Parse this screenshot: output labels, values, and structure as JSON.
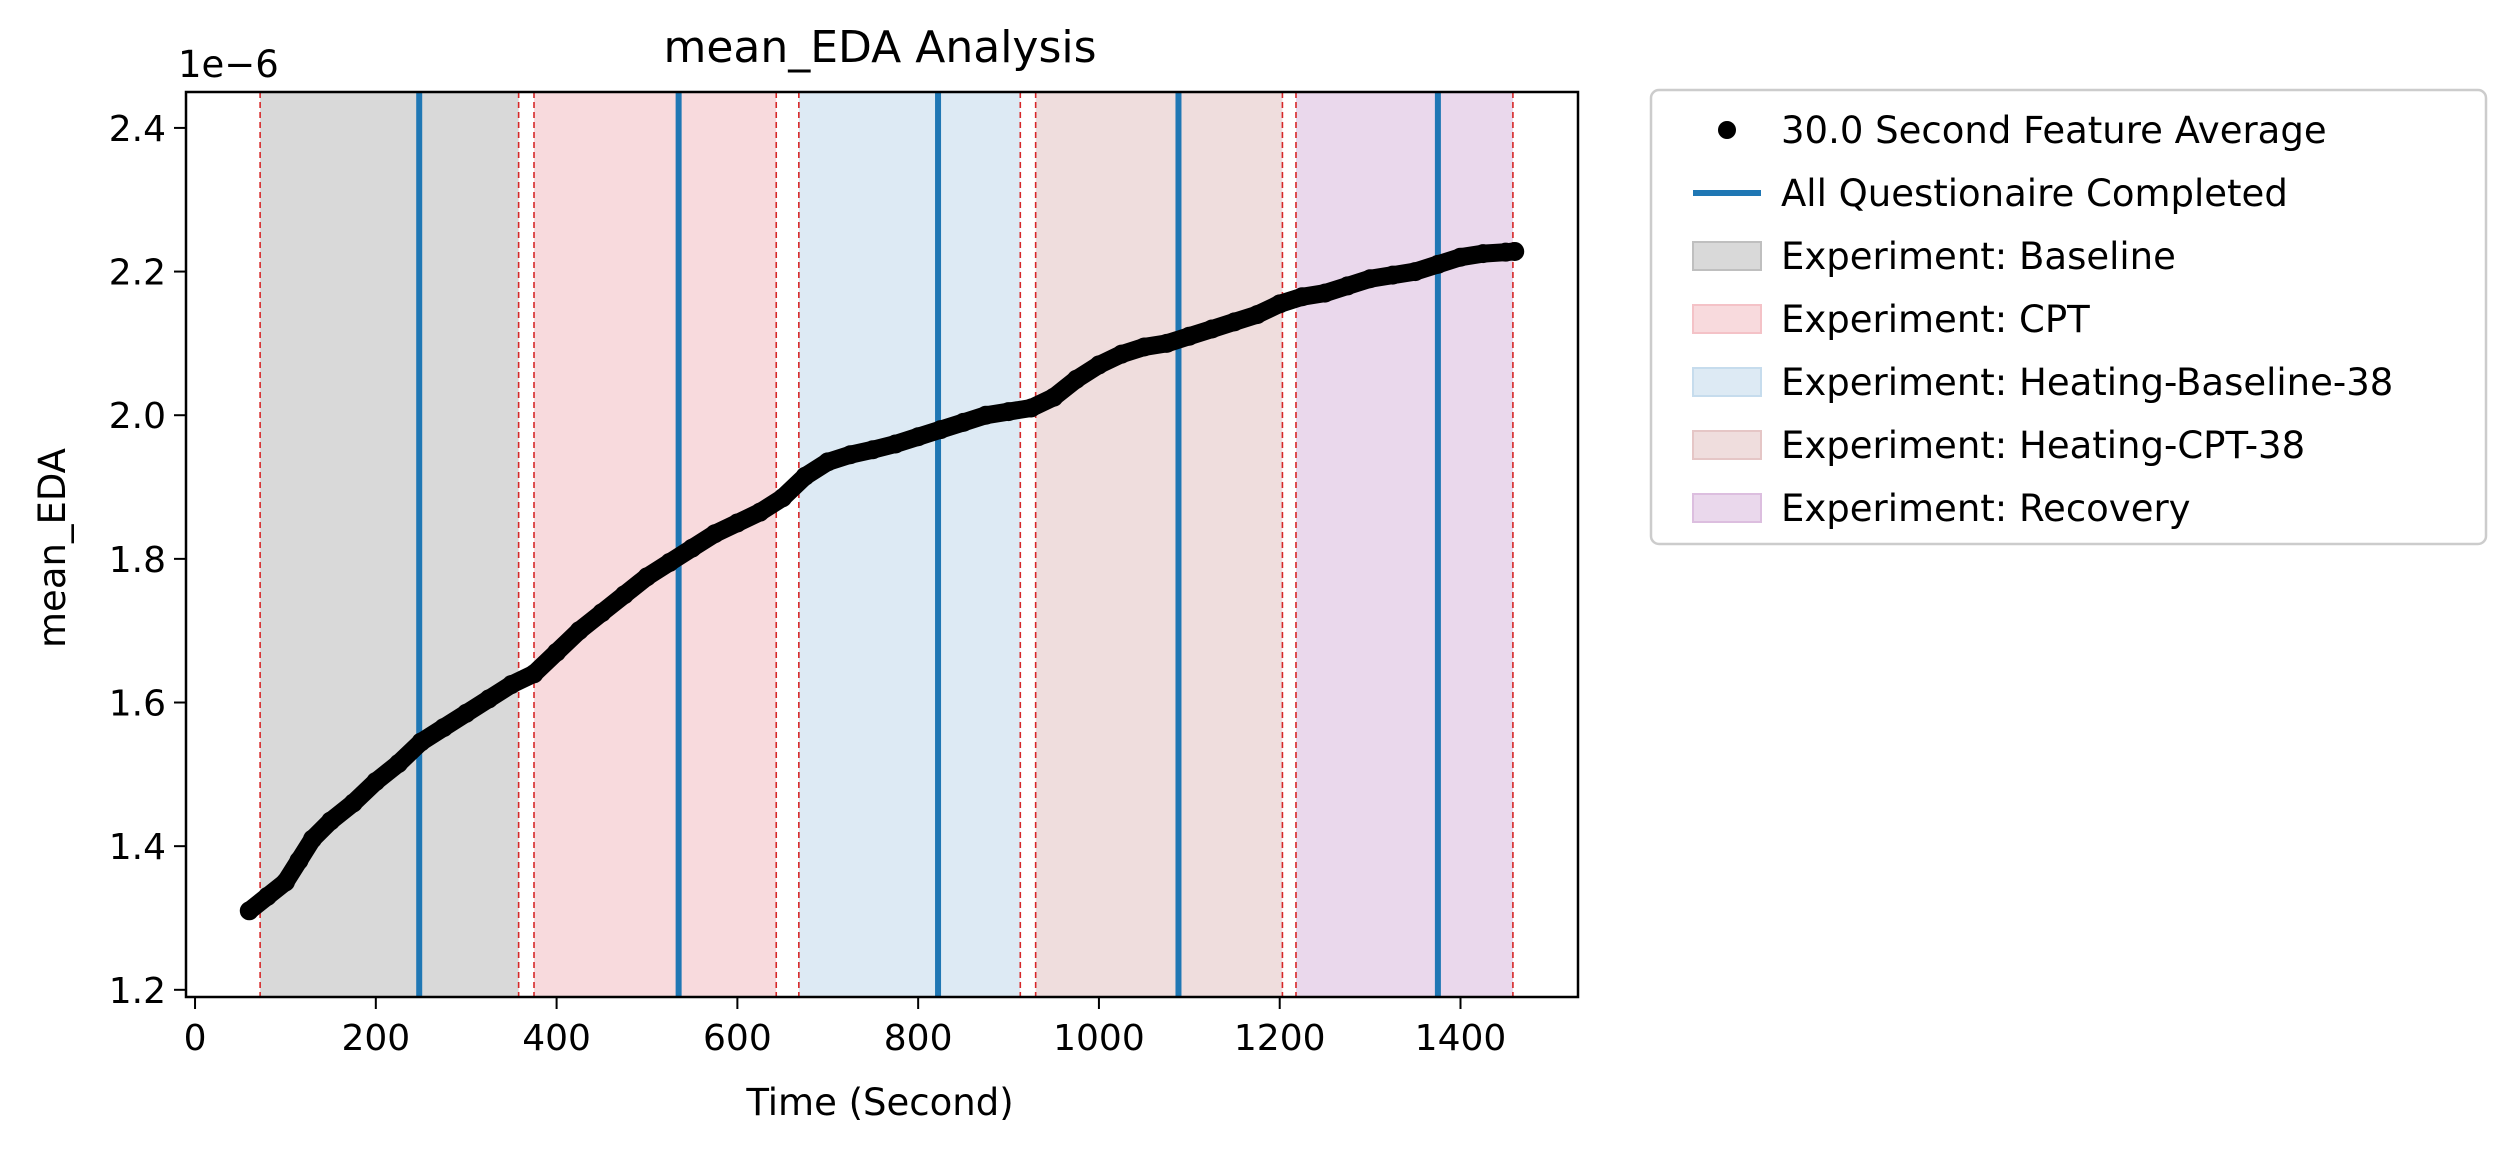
{
  "chart_data": {
    "type": "scatter",
    "title": "mean_EDA Analysis",
    "xlabel": "Time (Second)",
    "ylabel": "mean_EDA",
    "y_offset_label": "1e−6",
    "xlim": [
      -10,
      1530
    ],
    "ylim": [
      1.19,
      2.45
    ],
    "xticks": [
      0,
      200,
      400,
      600,
      800,
      1000,
      1200,
      1400
    ],
    "yticks": [
      1.2,
      1.4,
      1.6,
      1.8,
      2.0,
      2.2,
      2.4
    ],
    "ytick_labels": [
      "1.2",
      "1.4",
      "1.6",
      "1.8",
      "2.0",
      "2.2",
      "2.4"
    ],
    "grid": false,
    "legend_position": "outside-right",
    "series": [
      {
        "name": "30.0 Second Feature Average",
        "kind": "points",
        "color": "#000000",
        "x": [
          60,
          80,
          100,
          115,
          130,
          150,
          175,
          200,
          225,
          250,
          275,
          300,
          325,
          350,
          375,
          400,
          425,
          450,
          475,
          500,
          525,
          550,
          575,
          600,
          625,
          650,
          675,
          700,
          725,
          750,
          775,
          800,
          825,
          850,
          875,
          900,
          925,
          950,
          975,
          1000,
          1025,
          1050,
          1075,
          1100,
          1125,
          1150,
          1175,
          1200,
          1225,
          1250,
          1275,
          1300,
          1325,
          1350,
          1375,
          1400,
          1425,
          1450,
          1460
        ],
        "y": [
          1.31,
          1.33,
          1.35,
          1.38,
          1.41,
          1.435,
          1.46,
          1.49,
          1.515,
          1.545,
          1.565,
          1.585,
          1.605,
          1.625,
          1.64,
          1.67,
          1.7,
          1.725,
          1.75,
          1.775,
          1.795,
          1.815,
          1.835,
          1.85,
          1.865,
          1.885,
          1.915,
          1.935,
          1.945,
          1.952,
          1.96,
          1.97,
          1.98,
          1.99,
          2.0,
          2.005,
          2.01,
          2.025,
          2.05,
          2.07,
          2.085,
          2.095,
          2.1,
          2.11,
          2.12,
          2.13,
          2.14,
          2.155,
          2.165,
          2.17,
          2.18,
          2.19,
          2.195,
          2.2,
          2.21,
          2.22,
          2.225,
          2.227,
          2.228
        ]
      },
      {
        "name": "All Questionaire Completed",
        "kind": "vlines",
        "color": "#1f77b4",
        "x": [
          248,
          535,
          822,
          1088,
          1375
        ]
      }
    ],
    "regions": [
      {
        "name": "Experiment: Baseline",
        "x0": 72,
        "x1": 358,
        "color": "#bfbfbf"
      },
      {
        "name": "Experiment: CPT",
        "x0": 375,
        "x1": 643,
        "color": "#f4c2c7"
      },
      {
        "name": "Experiment: Heating-Baseline-38",
        "x0": 668,
        "x1": 913,
        "color": "#c6dced"
      },
      {
        "name": "Experiment: Heating-CPT-38",
        "x0": 930,
        "x1": 1203,
        "color": "#e5c6c6"
      },
      {
        "name": "Experiment: Recovery",
        "x0": 1218,
        "x1": 1458,
        "color": "#dcbedf"
      }
    ]
  }
}
